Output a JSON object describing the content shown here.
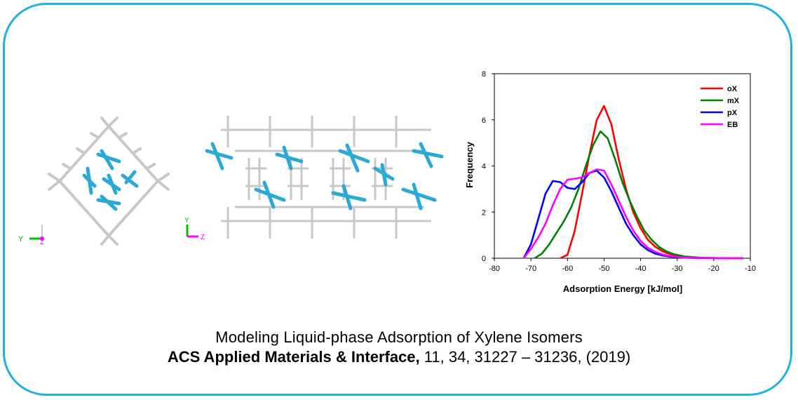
{
  "caption": {
    "title": "Modeling Liquid-phase Adsorption of Xylene Isomers",
    "journal": "ACS Applied Materials & Interface,",
    "citation": " 11, 34, 31227 – 31236, (2019)"
  },
  "axes_left": {
    "y": "Y",
    "z": "Z"
  },
  "axes_mid": {
    "y": "Y",
    "z": "Z"
  },
  "colors": {
    "frame": "#1fb0e6",
    "framework": "#c8c8c8",
    "molecule": "#2aa8d6"
  },
  "chart_data": {
    "type": "line",
    "xlabel": "Adsorption Energy [kJ/mol]",
    "ylabel": "Frequency",
    "xlim": [
      -80,
      -10
    ],
    "ylim": [
      0,
      8
    ],
    "xticks": [
      -80,
      -70,
      -60,
      -50,
      -40,
      -30,
      -20,
      -10
    ],
    "xtick_labels": [
      "-80",
      "-70",
      "-60",
      "-50",
      "-40",
      "-30",
      "-20",
      "-10"
    ],
    "yticks": [
      0,
      2,
      4,
      6,
      8
    ],
    "legend_position": "top-right",
    "grid": false,
    "series": [
      {
        "name": "oX",
        "color": "#ff0000",
        "x": [
          -62,
          -60,
          -58,
          -56,
          -54,
          -52,
          -50,
          -48,
          -46,
          -44,
          -42,
          -40,
          -38,
          -36,
          -34,
          -32,
          -30,
          -27,
          -24,
          -20,
          -15,
          -12
        ],
        "y": [
          0,
          0.15,
          1.2,
          2.8,
          4.5,
          6.0,
          6.6,
          5.8,
          4.3,
          3.0,
          2.0,
          1.3,
          0.8,
          0.5,
          0.3,
          0.18,
          0.1,
          0.05,
          0.02,
          0.01,
          0,
          0
        ]
      },
      {
        "name": "mX",
        "color": "#008000",
        "x": [
          -69,
          -67,
          -65,
          -63,
          -61,
          -59,
          -57,
          -55,
          -53,
          -51,
          -49,
          -47,
          -45,
          -43,
          -41,
          -39,
          -37,
          -35,
          -33,
          -31,
          -28,
          -24,
          -20,
          -15,
          -12
        ],
        "y": [
          0,
          0.2,
          0.6,
          1.1,
          1.6,
          2.2,
          3.0,
          4.0,
          4.9,
          5.5,
          5.2,
          4.3,
          3.3,
          2.5,
          1.8,
          1.2,
          0.8,
          0.5,
          0.3,
          0.18,
          0.08,
          0.03,
          0.01,
          0,
          0
        ]
      },
      {
        "name": "pX",
        "color": "#0000ff",
        "x": [
          -72,
          -70,
          -68,
          -66,
          -64,
          -62,
          -60,
          -58,
          -56,
          -54,
          -52,
          -50,
          -48,
          -46,
          -44,
          -42,
          -40,
          -38,
          -36,
          -34,
          -32,
          -29,
          -25,
          -20,
          -15,
          -12
        ],
        "y": [
          0,
          0.6,
          1.7,
          2.8,
          3.35,
          3.3,
          3.05,
          3.0,
          3.3,
          3.7,
          3.8,
          3.5,
          2.9,
          2.2,
          1.5,
          1.0,
          0.6,
          0.35,
          0.2,
          0.12,
          0.07,
          0.03,
          0.01,
          0,
          0,
          0
        ]
      },
      {
        "name": "EB",
        "color": "#ff00ff",
        "x": [
          -72,
          -70,
          -68,
          -66,
          -64,
          -62,
          -60,
          -58,
          -56,
          -54,
          -52,
          -50,
          -48,
          -46,
          -44,
          -42,
          -40,
          -38,
          -36,
          -34,
          -32,
          -29,
          -25,
          -20,
          -15,
          -12
        ],
        "y": [
          0,
          0.4,
          0.9,
          1.5,
          2.3,
          3.0,
          3.4,
          3.45,
          3.5,
          3.7,
          3.85,
          3.8,
          3.2,
          2.5,
          1.8,
          1.2,
          0.75,
          0.45,
          0.28,
          0.16,
          0.09,
          0.04,
          0.02,
          0.01,
          0,
          0
        ]
      }
    ]
  }
}
